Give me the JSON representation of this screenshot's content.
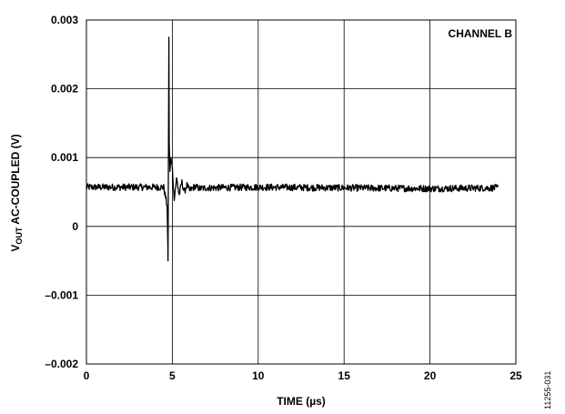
{
  "chart_data": {
    "type": "line",
    "annotation": "CHANNEL B",
    "xlabel": "TIME (µs)",
    "ylabel_main": "V",
    "ylabel_sub": "OUT",
    "ylabel_rest": " AC-COUPLED (V)",
    "figure_id": "11255-031",
    "xlim": [
      0,
      25
    ],
    "ylim": [
      -0.002,
      0.003
    ],
    "x_ticks": [
      0,
      5,
      10,
      15,
      20,
      25
    ],
    "x_tick_labels": [
      "0",
      "5",
      "10",
      "15",
      "20",
      "25"
    ],
    "y_ticks": [
      -0.002,
      -0.001,
      0,
      0.001,
      0.002,
      0.003
    ],
    "y_tick_labels": [
      "–0.002",
      "–0.001",
      "0",
      "0.001",
      "0.002",
      "0.003"
    ],
    "grid": true,
    "series": [
      {
        "color": "#000000",
        "x": [
          0,
          2,
          4,
          4.5,
          4.7,
          4.75,
          4.8,
          4.82,
          4.86,
          4.9,
          5.0,
          5.1,
          5.25,
          5.4,
          5.55,
          5.7,
          5.85,
          6.0,
          6.3,
          6.6,
          7,
          10,
          15,
          20,
          24
        ],
        "y": [
          0.00057,
          0.00057,
          0.00057,
          0.00057,
          0.0003,
          -0.0005,
          0.00275,
          0.0012,
          0.0008,
          0.001,
          0.00085,
          0.0004,
          0.0007,
          0.00045,
          0.00065,
          0.0005,
          0.0006,
          0.00052,
          0.00058,
          0.00055,
          0.00056,
          0.00057,
          0.00056,
          0.00055,
          0.00056
        ],
        "noise_band": 5e-05
      }
    ]
  }
}
